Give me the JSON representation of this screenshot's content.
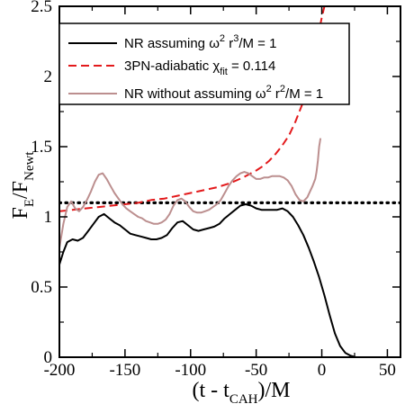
{
  "chart_data": {
    "type": "line",
    "xlabel": {
      "main": "(t - t",
      "sub": "CAH",
      "tail": ")/M"
    },
    "ylabel": {
      "main": "F",
      "sub1": "E",
      "mid": "/F",
      "sub2": "Newt"
    },
    "xlim": [
      -200,
      60
    ],
    "ylim": [
      0,
      2.5
    ],
    "xticks": [
      -200,
      -150,
      -100,
      -50,
      0,
      50
    ],
    "yticks": [
      0,
      0.5,
      1,
      1.5,
      2,
      2.5
    ],
    "xtick_labels": [
      "-200",
      "-150",
      "-100",
      "-50",
      "0",
      "50"
    ],
    "ytick_labels": [
      "0",
      "0.5",
      "1",
      "1.5",
      "2",
      "2.5"
    ],
    "grid": false,
    "legend_position": "top-left",
    "reference_line": {
      "y": 1.1,
      "style": "dotted",
      "color": "#000000"
    },
    "series": [
      {
        "legend_html": "NR assuming ω<tspan dy='-6' font-size='11'>2</tspan><tspan dy='6'> r</tspan><tspan dy='-6' font-size='11'>3</tspan><tspan dy='6'>/M = 1</tspan>",
        "legend_parts": [
          "NR assuming ω",
          "2",
          " r",
          "3",
          "/M = 1"
        ],
        "color": "#000000",
        "dash": "solid",
        "x": [
          -200,
          -197,
          -194,
          -190,
          -186,
          -182,
          -178,
          -174,
          -170,
          -166,
          -162,
          -158,
          -154,
          -150,
          -146,
          -142,
          -138,
          -134,
          -130,
          -126,
          -122,
          -118,
          -114,
          -110,
          -106,
          -102,
          -98,
          -94,
          -90,
          -86,
          -82,
          -78,
          -74,
          -70,
          -66,
          -62,
          -58,
          -54,
          -50,
          -46,
          -42,
          -38,
          -34,
          -30,
          -26,
          -22,
          -18,
          -14,
          -10,
          -6,
          -2,
          2,
          6,
          10,
          14,
          18,
          22,
          26,
          30,
          34,
          38,
          42
        ],
        "y": [
          0.66,
          0.75,
          0.82,
          0.84,
          0.83,
          0.85,
          0.9,
          0.95,
          1.0,
          1.02,
          0.99,
          0.96,
          0.94,
          0.91,
          0.88,
          0.87,
          0.86,
          0.85,
          0.84,
          0.84,
          0.85,
          0.87,
          0.92,
          0.96,
          0.97,
          0.94,
          0.91,
          0.9,
          0.91,
          0.92,
          0.93,
          0.95,
          0.99,
          1.02,
          1.05,
          1.08,
          1.09,
          1.08,
          1.06,
          1.05,
          1.05,
          1.05,
          1.05,
          1.06,
          1.04,
          1.0,
          0.94,
          0.87,
          0.78,
          0.68,
          0.57,
          0.44,
          0.3,
          0.17,
          0.08,
          0.03,
          0.01,
          0.0,
          0.0,
          0.0,
          0.0,
          0.0
        ]
      },
      {
        "legend_html": "3PN-adiabatic χ<tspan dy='5' font-size='11'>fit</tspan><tspan dy='-5'> = 0.114</tspan>",
        "legend_parts": [
          "3PN-adiabatic χ",
          "fit",
          " = 0.114"
        ],
        "color": "#e31a1c",
        "dash": "dashed",
        "x": [
          -200,
          -190,
          -180,
          -170,
          -160,
          -150,
          -140,
          -130,
          -120,
          -110,
          -100,
          -90,
          -80,
          -70,
          -60,
          -50,
          -45,
          -40,
          -35,
          -30,
          -25,
          -20,
          -15,
          -10,
          -6,
          -3,
          0,
          2,
          4
        ],
        "y": [
          1.04,
          1.05,
          1.06,
          1.07,
          1.08,
          1.09,
          1.1,
          1.12,
          1.13,
          1.15,
          1.17,
          1.19,
          1.21,
          1.24,
          1.28,
          1.33,
          1.36,
          1.4,
          1.45,
          1.51,
          1.58,
          1.68,
          1.8,
          1.96,
          2.12,
          2.28,
          2.42,
          2.5,
          2.58
        ]
      },
      {
        "legend_html": "NR without assuming ω<tspan dy='-6' font-size='11'>2</tspan><tspan dy='6'> r</tspan><tspan dy='-6' font-size='11'>2</tspan><tspan dy='6'>/M = 1</tspan>",
        "legend_parts": [
          "NR without assuming ω",
          "2",
          " r",
          "2",
          "/M = 1"
        ],
        "color": "#bc8f8f",
        "dash": "solid",
        "x": [
          -200,
          -197,
          -194,
          -191,
          -188,
          -185,
          -182,
          -179,
          -176,
          -173,
          -170,
          -167,
          -164,
          -161,
          -158,
          -155,
          -152,
          -149,
          -146,
          -143,
          -140,
          -137,
          -134,
          -131,
          -128,
          -125,
          -122,
          -119,
          -116,
          -113,
          -110,
          -107,
          -104,
          -101,
          -98,
          -95,
          -92,
          -89,
          -86,
          -83,
          -80,
          -77,
          -74,
          -71,
          -68,
          -65,
          -62,
          -59,
          -56,
          -53,
          -50,
          -47,
          -44,
          -41,
          -38,
          -35,
          -32,
          -29,
          -26,
          -23,
          -20,
          -17,
          -14,
          -11,
          -9,
          -7,
          -5,
          -4,
          -3,
          -2,
          -1
        ],
        "y": [
          0.78,
          0.95,
          1.07,
          1.11,
          1.06,
          1.04,
          1.07,
          1.12,
          1.18,
          1.25,
          1.3,
          1.31,
          1.27,
          1.22,
          1.17,
          1.13,
          1.09,
          1.06,
          1.04,
          1.02,
          1.0,
          0.99,
          0.97,
          0.96,
          0.95,
          0.95,
          0.96,
          0.98,
          1.02,
          1.08,
          1.12,
          1.13,
          1.11,
          1.07,
          1.04,
          1.03,
          1.03,
          1.04,
          1.05,
          1.07,
          1.09,
          1.12,
          1.17,
          1.22,
          1.26,
          1.29,
          1.31,
          1.32,
          1.31,
          1.29,
          1.27,
          1.27,
          1.28,
          1.28,
          1.29,
          1.29,
          1.29,
          1.28,
          1.26,
          1.22,
          1.16,
          1.12,
          1.11,
          1.14,
          1.18,
          1.22,
          1.27,
          1.32,
          1.4,
          1.5,
          1.56
        ]
      }
    ]
  }
}
